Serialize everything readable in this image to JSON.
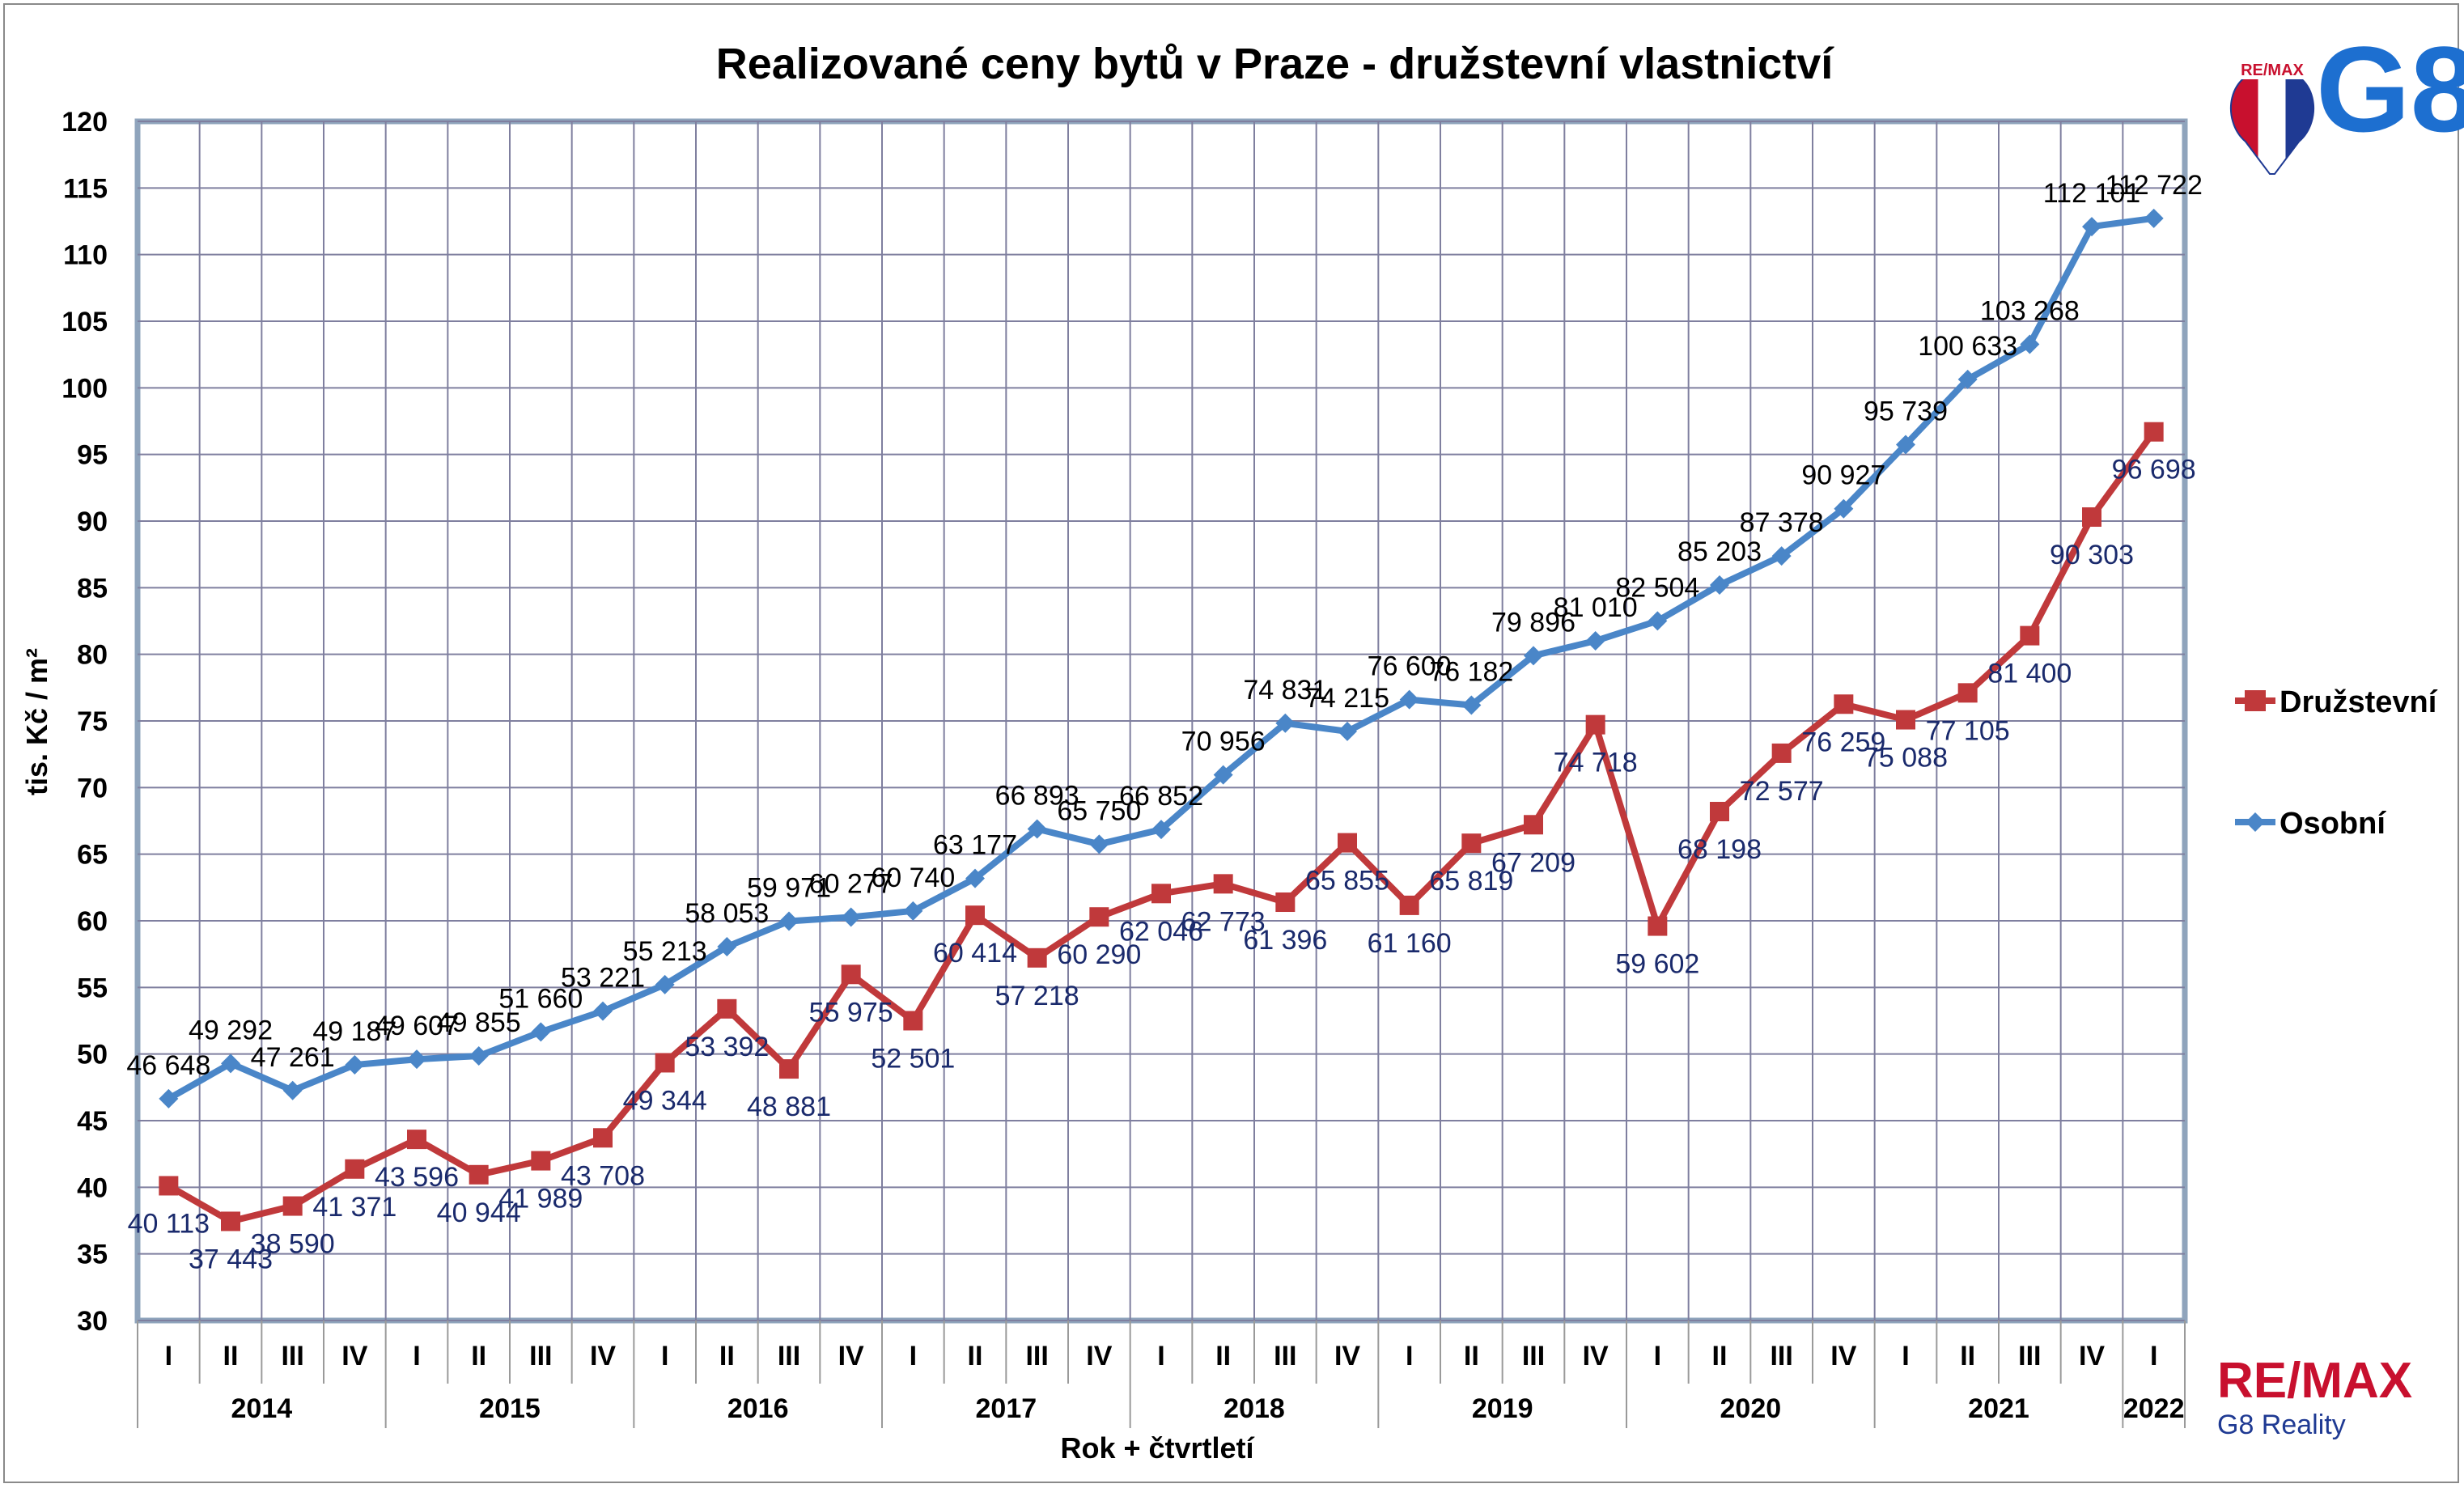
{
  "colors": {
    "osobni": "#4a86c8",
    "druzstevni": "#c0393b",
    "osobni_label": "#000000",
    "druzstevni_label": "#1a2a6c",
    "grid": "#7f7f9f",
    "plot_border": "#8fa4bc",
    "remax_red": "#c8102e",
    "remax_blue": "#1f3a93"
  },
  "brand": {
    "remax_text": "RE/MAX",
    "g8_text": "G8",
    "balloon_text": "RE/MAX",
    "footer_remax": "RE/MAX",
    "footer_sub": "G8 Reality"
  },
  "chart_data": {
    "type": "line",
    "title": "Realizované ceny bytů v Praze - družstevní vlastnictví",
    "xlabel": "Rok + čtvrtletí",
    "ylabel": "tis. Kč / m²",
    "ylim": [
      30,
      120
    ],
    "yticks": [
      30,
      35,
      40,
      45,
      50,
      55,
      60,
      65,
      70,
      75,
      80,
      85,
      90,
      95,
      100,
      105,
      110,
      115,
      120
    ],
    "grid": true,
    "legend_position": "right",
    "categories": [
      "I",
      "II",
      "III",
      "IV",
      "I",
      "II",
      "III",
      "IV",
      "I",
      "II",
      "III",
      "IV",
      "I",
      "II",
      "III",
      "IV",
      "I",
      "II",
      "III",
      "IV",
      "I",
      "II",
      "III",
      "IV",
      "I",
      "II",
      "III",
      "IV",
      "I",
      "II",
      "III",
      "IV",
      "I"
    ],
    "years": [
      {
        "label": "2014",
        "quarters": 4
      },
      {
        "label": "2015",
        "quarters": 4
      },
      {
        "label": "2016",
        "quarters": 4
      },
      {
        "label": "2017",
        "quarters": 4
      },
      {
        "label": "2018",
        "quarters": 4
      },
      {
        "label": "2019",
        "quarters": 4
      },
      {
        "label": "2020",
        "quarters": 4
      },
      {
        "label": "2021",
        "quarters": 4
      },
      {
        "label": "2022",
        "quarters": 1
      }
    ],
    "series": [
      {
        "name": "Družstevní",
        "marker": "square",
        "values": [
          40.113,
          37.443,
          38.59,
          41.371,
          43.596,
          40.944,
          41.989,
          43.708,
          49.344,
          53.392,
          48.881,
          55.975,
          52.501,
          60.414,
          57.218,
          60.29,
          62.046,
          62.773,
          61.396,
          65.855,
          61.16,
          65.819,
          67.209,
          74.718,
          59.602,
          68.198,
          72.577,
          76.259,
          75.088,
          77.105,
          81.4,
          90.303,
          96.698
        ],
        "labels": [
          "40 113",
          "37 443",
          "38 590",
          "41 371",
          "43 596",
          "40 944",
          "41 989",
          "43 708",
          "49 344",
          "53 392",
          "48 881",
          "55 975",
          "52 501",
          "60 414",
          "57 218",
          "60 290",
          "62 046",
          "62 773",
          "61 396",
          "65 855",
          "61 160",
          "65 819",
          "67 209",
          "74 718",
          "59 602",
          "68 198",
          "72 577",
          "76 259",
          "75 088",
          "77 105",
          "81 400",
          "90 303",
          "96 698"
        ]
      },
      {
        "name": "Osobní",
        "marker": "diamond",
        "values": [
          46.648,
          49.292,
          47.261,
          49.187,
          49.607,
          49.855,
          51.66,
          53.221,
          55.213,
          58.053,
          59.971,
          60.277,
          60.74,
          63.177,
          66.893,
          65.75,
          66.852,
          70.956,
          74.831,
          74.215,
          76.6,
          76.182,
          79.896,
          81.01,
          82.504,
          85.203,
          87.378,
          90.927,
          95.739,
          100.633,
          103.268,
          112.101,
          112.722
        ],
        "labels": [
          "46 648",
          "49 292",
          "47 261",
          "49 187",
          "49 607",
          "49 855",
          "51 660",
          "53 221",
          "55 213",
          "58 053",
          "59 971",
          "60 277",
          "60 740",
          "63 177",
          "66 893",
          "65 750",
          "66 852",
          "70 956",
          "74 831",
          "74 215",
          "76 600",
          "76 182",
          "79 896",
          "81 010",
          "82 504",
          "85 203",
          "87 378",
          "90 927",
          "95 739",
          "100 633",
          "103 268",
          "112 101",
          "112 722"
        ]
      }
    ]
  }
}
